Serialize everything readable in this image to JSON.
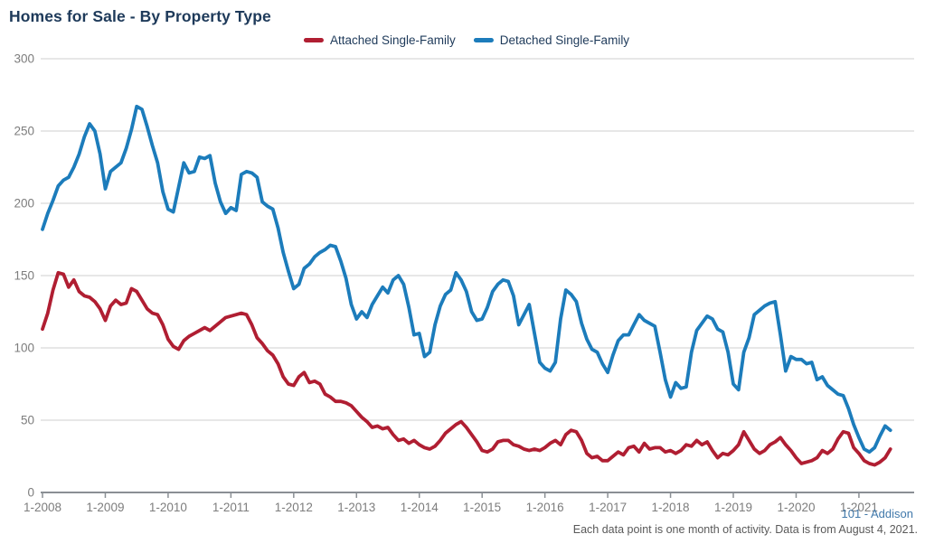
{
  "title": "Homes for Sale - By Property Type",
  "legend": [
    {
      "label": "Attached Single-Family",
      "color": "#b01e32"
    },
    {
      "label": "Detached Single-Family",
      "color": "#1c7cbb"
    }
  ],
  "footer": {
    "source_link": "101 - Addison",
    "note": "Each data point is one month of activity. Data is from August 4, 2021."
  },
  "chart_data": {
    "type": "line",
    "title": "Homes for Sale - By Property Type",
    "xlabel": "",
    "ylabel": "",
    "ylim": [
      0,
      300
    ],
    "y_ticks": [
      0,
      50,
      100,
      150,
      200,
      250,
      300
    ],
    "grid": true,
    "legend_position": "top-center",
    "x_unit": "month",
    "x_start_month": "1-2008",
    "x_end_month": "7-2021",
    "points_per_series": 163,
    "x_tick_labels": [
      "1-2008",
      "1-2009",
      "1-2010",
      "1-2011",
      "1-2012",
      "1-2013",
      "1-2014",
      "1-2015",
      "1-2016",
      "1-2017",
      "1-2018",
      "1-2019",
      "1-2020",
      "1-2021"
    ],
    "series": [
      {
        "name": "Attached Single-Family",
        "color": "#b01e32",
        "values": [
          113,
          124,
          140,
          152,
          151,
          142,
          147,
          139,
          136,
          135,
          132,
          127,
          119,
          129,
          133,
          130,
          131,
          141,
          139,
          133,
          127,
          124,
          123,
          116,
          106,
          101,
          99,
          105,
          108,
          110,
          112,
          114,
          112,
          115,
          118,
          121,
          122,
          123,
          124,
          123,
          116,
          107,
          103,
          98,
          95,
          89,
          80,
          75,
          74,
          80,
          83,
          76,
          77,
          75,
          68,
          66,
          63,
          63,
          62,
          60,
          56,
          52,
          49,
          45,
          46,
          44,
          45,
          40,
          36,
          37,
          34,
          36,
          33,
          31,
          30,
          32,
          36,
          41,
          44,
          47,
          49,
          45,
          40,
          35,
          29,
          28,
          30,
          35,
          36,
          36,
          33,
          32,
          30,
          29,
          30,
          29,
          31,
          34,
          36,
          33,
          40,
          43,
          42,
          36,
          27,
          24,
          25,
          22,
          22,
          25,
          28,
          26,
          31,
          32,
          28,
          34,
          30,
          31,
          31,
          28,
          29,
          27,
          29,
          33,
          32,
          36,
          33,
          35,
          29,
          24,
          27,
          26,
          29,
          33,
          42,
          36,
          30,
          27,
          29,
          33,
          35,
          38,
          33,
          29,
          24,
          20,
          21,
          22,
          24,
          29,
          27,
          30,
          37,
          42,
          41,
          31,
          27,
          22,
          20,
          19,
          21,
          24,
          30
        ]
      },
      {
        "name": "Detached Single-Family",
        "color": "#1c7cbb",
        "values": [
          182,
          193,
          202,
          212,
          216,
          218,
          225,
          234,
          246,
          255,
          250,
          234,
          210,
          222,
          225,
          228,
          238,
          251,
          267,
          265,
          253,
          240,
          228,
          208,
          196,
          194,
          211,
          228,
          221,
          222,
          232,
          231,
          233,
          214,
          201,
          193,
          197,
          195,
          220,
          222,
          221,
          218,
          201,
          198,
          196,
          183,
          166,
          153,
          141,
          144,
          155,
          158,
          163,
          166,
          168,
          171,
          170,
          160,
          148,
          130,
          120,
          125,
          121,
          130,
          136,
          142,
          138,
          147,
          150,
          144,
          128,
          109,
          110,
          94,
          97,
          116,
          129,
          137,
          140,
          152,
          147,
          139,
          125,
          119,
          120,
          128,
          139,
          144,
          147,
          146,
          136,
          116,
          123,
          130,
          110,
          90,
          86,
          84,
          90,
          120,
          140,
          137,
          132,
          117,
          106,
          99,
          97,
          89,
          83,
          95,
          105,
          109,
          109,
          116,
          123,
          119,
          117,
          115,
          97,
          78,
          66,
          76,
          72,
          73,
          97,
          112,
          117,
          122,
          120,
          113,
          111,
          97,
          75,
          71,
          97,
          107,
          123,
          126,
          129,
          131,
          132,
          109,
          84,
          94,
          92,
          92,
          89,
          90,
          78,
          80,
          74,
          71,
          68,
          67,
          58,
          47,
          38,
          30,
          28,
          31,
          39,
          46,
          43
        ]
      }
    ]
  }
}
